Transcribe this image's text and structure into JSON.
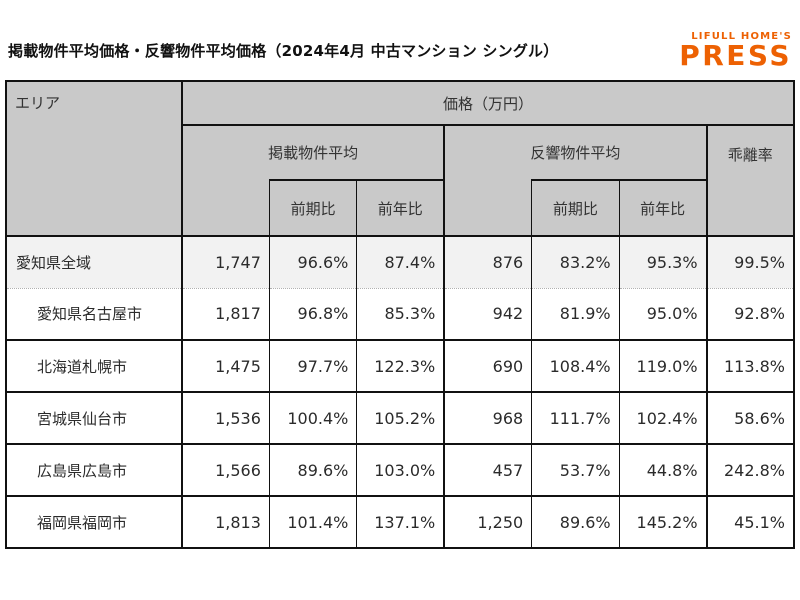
{
  "page_title": "掲載物件平均価格・反響物件平均価格（2024年4月 中古マンション シングル）",
  "logo": {
    "brand": "LIFULL HOME'S",
    "name": "PRESS",
    "color": "#ED6103"
  },
  "chart_data": {
    "type": "table",
    "title": "掲載物件平均価格・反響物件平均価格（2024年4月 中古マンション シングル）",
    "header": {
      "area": "エリア",
      "price_unit": "価格（万円）",
      "groups": [
        "掲載物件平均",
        "反響物件平均",
        "乖離率"
      ],
      "sub_labels": [
        "前期比",
        "前年比"
      ]
    },
    "rows": [
      {
        "cells": [
          "愛知県全域",
          "1,747",
          "96.6%",
          "87.4%",
          "876",
          "83.2%",
          "95.3%",
          "99.5%"
        ]
      },
      {
        "cells": [
          "愛知県名古屋市",
          "1,817",
          "96.8%",
          "85.3%",
          "942",
          "81.9%",
          "95.0%",
          "92.8%"
        ]
      },
      {
        "cells": [
          "北海道札幌市",
          "1,475",
          "97.7%",
          "122.3%",
          "690",
          "108.4%",
          "119.0%",
          "113.8%"
        ]
      },
      {
        "cells": [
          "宮城県仙台市",
          "1,536",
          "100.4%",
          "105.2%",
          "968",
          "111.7%",
          "102.4%",
          "58.6%"
        ]
      },
      {
        "cells": [
          "広島県広島市",
          "1,566",
          "89.6%",
          "103.0%",
          "457",
          "53.7%",
          "44.8%",
          "242.8%"
        ]
      },
      {
        "cells": [
          "福岡県福岡市",
          "1,813",
          "101.4%",
          "137.1%",
          "1,250",
          "89.6%",
          "145.2%",
          "45.1%"
        ]
      }
    ],
    "styles": {
      "header_bg": "#C9C9C9",
      "first_row_bg": "#F2F2F2",
      "border_color": "#111111",
      "accent": "#ED6103"
    }
  }
}
